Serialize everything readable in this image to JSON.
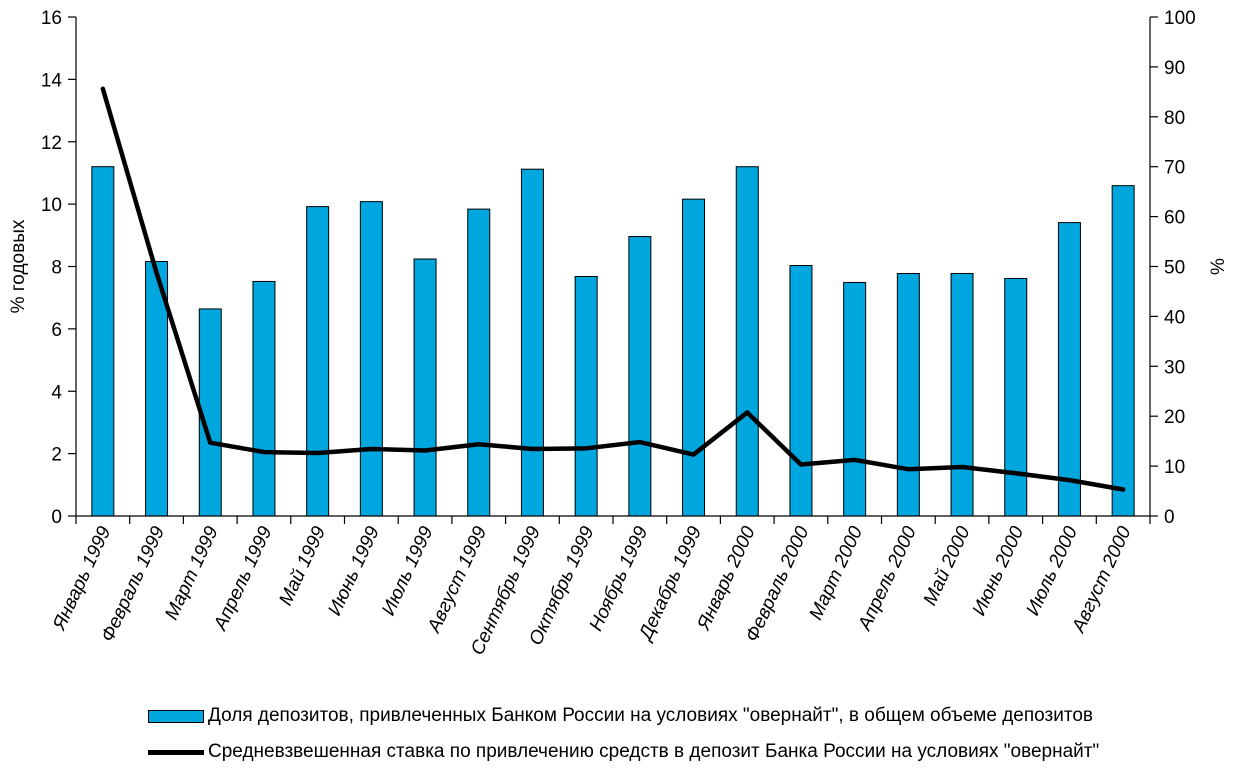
{
  "chart_data": {
    "type": "bar+line",
    "categories": [
      "Январь 1999",
      "Февраль 1999",
      "Март 1999",
      "Апрель 1999",
      "Май 1999",
      "Июнь 1999",
      "Июль 1999",
      "Август 1999",
      "Сентябрь 1999",
      "Октябрь 1999",
      "Ноябрь 1999",
      "Декабрь 1999",
      "Январь 2000",
      "Февраль 2000",
      "Март 2000",
      "Апрель 2000",
      "Май 2000",
      "Июнь 2000",
      "Июль 2000",
      "Август 2000"
    ],
    "series": [
      {
        "name": "Доля депозитов, привлеченных Банком России на условиях \"овернайт\", в общем объеме депозитов",
        "kind": "bar",
        "axis": "right",
        "color": "#00A6DE",
        "values": [
          70,
          51,
          41.5,
          47,
          62,
          63,
          51.5,
          61.5,
          69.5,
          48,
          56,
          63.5,
          70,
          50.2,
          46.8,
          48.6,
          48.6,
          47.6,
          58.8,
          66.2
        ]
      },
      {
        "name": "Средневзвешенная ставка по привлечению средств в депозит Банка России  на условиях \"овернайт\"",
        "kind": "line",
        "axis": "left",
        "color": "#000000",
        "values": [
          13.7,
          7.8,
          2.35,
          2.05,
          2.02,
          2.15,
          2.1,
          2.3,
          2.15,
          2.17,
          2.37,
          1.97,
          3.32,
          1.65,
          1.8,
          1.5,
          1.57,
          1.37,
          1.15,
          0.85
        ]
      }
    ],
    "ylabel": "% годовых",
    "ylim": [
      0,
      16
    ],
    "yticks": [
      0,
      2,
      4,
      6,
      8,
      10,
      12,
      14,
      16
    ],
    "y2label": "%",
    "y2lim": [
      0,
      100
    ],
    "y2ticks": [
      0,
      10,
      20,
      30,
      40,
      50,
      60,
      70,
      80,
      90,
      100
    ],
    "grid": false,
    "legend_position": "bottom"
  },
  "legend": {
    "bar_label": "Доля депозитов, привлеченных Банком России на условиях \"овернайт\", в общем объеме депозитов",
    "line_label": "Средневзвешенная ставка по привлечению средств в депозит Банка России  на условиях \"овернайт\""
  }
}
